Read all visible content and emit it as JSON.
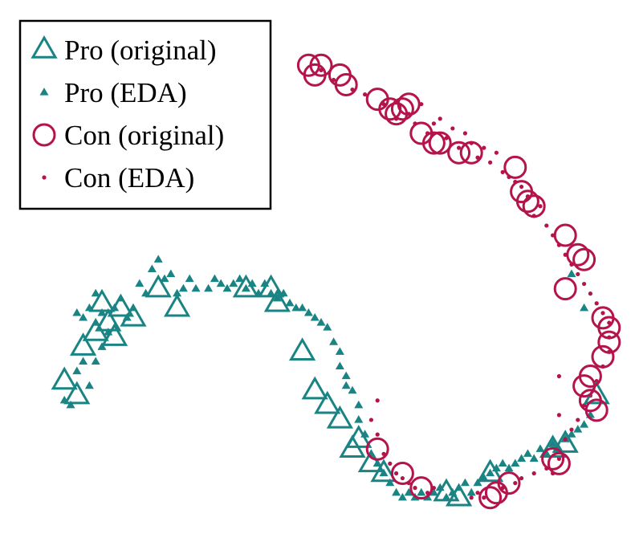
{
  "colors": {
    "pro": "#1a8383",
    "con": "#b5134b"
  },
  "chart_data": {
    "type": "scatter",
    "title": "",
    "xlabel": "",
    "ylabel": "",
    "axes_visible": false,
    "grid": false,
    "xlim": [
      0,
      100
    ],
    "ylim": [
      0,
      100
    ],
    "legend": {
      "placement": "top-left",
      "entries": [
        {
          "label": "Pro (original)",
          "marker": "open-triangle-large",
          "color": "#1a8383"
        },
        {
          "label": "Pro (EDA)",
          "marker": "filled-triangle-small",
          "color": "#1a8383"
        },
        {
          "label": "Con (original)",
          "marker": "open-circle-large",
          "color": "#b5134b"
        },
        {
          "label": "Con (EDA)",
          "marker": "filled-dot-small",
          "color": "#b5134b"
        }
      ]
    },
    "series": [
      {
        "name": "Pro (original)",
        "points": [
          [
            9,
            29
          ],
          [
            11,
            26
          ],
          [
            12,
            36
          ],
          [
            14,
            39
          ],
          [
            15,
            45
          ],
          [
            16,
            41
          ],
          [
            17,
            38
          ],
          [
            18,
            44
          ],
          [
            20,
            42
          ],
          [
            24,
            48
          ],
          [
            27,
            44
          ],
          [
            38,
            48
          ],
          [
            42,
            48
          ],
          [
            43,
            45
          ],
          [
            47,
            35
          ],
          [
            49,
            27
          ],
          [
            51,
            24
          ],
          [
            53,
            21
          ],
          [
            55,
            15
          ],
          [
            56,
            17
          ],
          [
            58,
            12
          ],
          [
            60,
            10
          ],
          [
            70,
            6
          ],
          [
            72,
            5
          ],
          [
            77,
            10
          ],
          [
            87,
            15
          ],
          [
            89,
            16
          ],
          [
            94,
            26
          ]
        ]
      },
      {
        "name": "Pro (EDA)",
        "points": [
          [
            9,
            25
          ],
          [
            10,
            24
          ],
          [
            11,
            31
          ],
          [
            11,
            43
          ],
          [
            12,
            33
          ],
          [
            12,
            42
          ],
          [
            13,
            28
          ],
          [
            13,
            44
          ],
          [
            14,
            33
          ],
          [
            14,
            41
          ],
          [
            14,
            47
          ],
          [
            15,
            36
          ],
          [
            15,
            43
          ],
          [
            16,
            39
          ],
          [
            17,
            44
          ],
          [
            18,
            46
          ],
          [
            19,
            42
          ],
          [
            20,
            44
          ],
          [
            21,
            49
          ],
          [
            22,
            47
          ],
          [
            23,
            52
          ],
          [
            24,
            54
          ],
          [
            25,
            50
          ],
          [
            26,
            51
          ],
          [
            27,
            47
          ],
          [
            28,
            48
          ],
          [
            29,
            50
          ],
          [
            30,
            48
          ],
          [
            32,
            48
          ],
          [
            33,
            50
          ],
          [
            34,
            49
          ],
          [
            35,
            48
          ],
          [
            36,
            49
          ],
          [
            37,
            50
          ],
          [
            38,
            48
          ],
          [
            39,
            49
          ],
          [
            40,
            47
          ],
          [
            41,
            49
          ],
          [
            42,
            47
          ],
          [
            43,
            46
          ],
          [
            44,
            47
          ],
          [
            45,
            45
          ],
          [
            46,
            44
          ],
          [
            47,
            44
          ],
          [
            48,
            43
          ],
          [
            49,
            42
          ],
          [
            50,
            41
          ],
          [
            51,
            40
          ],
          [
            52,
            37
          ],
          [
            53,
            35
          ],
          [
            53,
            32
          ],
          [
            54,
            30
          ],
          [
            54,
            28
          ],
          [
            55,
            27
          ],
          [
            56,
            24
          ],
          [
            56,
            21
          ],
          [
            57,
            18
          ],
          [
            58,
            14
          ],
          [
            59,
            12
          ],
          [
            60,
            10
          ],
          [
            61,
            8
          ],
          [
            62,
            6
          ],
          [
            63,
            5
          ],
          [
            64,
            6
          ],
          [
            65,
            5
          ],
          [
            66,
            6
          ],
          [
            67,
            5
          ],
          [
            68,
            6
          ],
          [
            69,
            7
          ],
          [
            70,
            5
          ],
          [
            71,
            6
          ],
          [
            72,
            7
          ],
          [
            73,
            8
          ],
          [
            74,
            6
          ],
          [
            75,
            8
          ],
          [
            76,
            9
          ],
          [
            77,
            10
          ],
          [
            78,
            11
          ],
          [
            79,
            12
          ],
          [
            80,
            11
          ],
          [
            81,
            12
          ],
          [
            82,
            13
          ],
          [
            83,
            14
          ],
          [
            84,
            13
          ],
          [
            85,
            15
          ],
          [
            86,
            14
          ],
          [
            87,
            16
          ],
          [
            88,
            15
          ],
          [
            89,
            17
          ],
          [
            90,
            18
          ],
          [
            91,
            19
          ],
          [
            92,
            20
          ],
          [
            93,
            22
          ],
          [
            90,
            51
          ],
          [
            92,
            44
          ]
        ]
      },
      {
        "name": "Con (original)",
        "points": [
          [
            48,
            94
          ],
          [
            49,
            92
          ],
          [
            50,
            94
          ],
          [
            53,
            92
          ],
          [
            54,
            90
          ],
          [
            59,
            87
          ],
          [
            61,
            85
          ],
          [
            62,
            84
          ],
          [
            63,
            85
          ],
          [
            64,
            86
          ],
          [
            66,
            80
          ],
          [
            68,
            78
          ],
          [
            69,
            78
          ],
          [
            72,
            76
          ],
          [
            74,
            76
          ],
          [
            81,
            73
          ],
          [
            82,
            68
          ],
          [
            83,
            66
          ],
          [
            84,
            65
          ],
          [
            89,
            59
          ],
          [
            91,
            55
          ],
          [
            92,
            54
          ],
          [
            89,
            48
          ],
          [
            95,
            42
          ],
          [
            96,
            40
          ],
          [
            96,
            37
          ],
          [
            95,
            34
          ],
          [
            93,
            30
          ],
          [
            92,
            28
          ],
          [
            93,
            25
          ],
          [
            94,
            23
          ],
          [
            88,
            12
          ],
          [
            87,
            13
          ],
          [
            80,
            8
          ],
          [
            78,
            6
          ],
          [
            77,
            5
          ],
          [
            66,
            7
          ],
          [
            63,
            10
          ],
          [
            59,
            15
          ]
        ]
      },
      {
        "name": "Con (EDA)",
        "points": [
          [
            50,
            93
          ],
          [
            52,
            91
          ],
          [
            55,
            89
          ],
          [
            57,
            88
          ],
          [
            60,
            86
          ],
          [
            62,
            83
          ],
          [
            64,
            84
          ],
          [
            65,
            82
          ],
          [
            66,
            86
          ],
          [
            67,
            80
          ],
          [
            68,
            82
          ],
          [
            69,
            83
          ],
          [
            70,
            79
          ],
          [
            71,
            81
          ],
          [
            72,
            77
          ],
          [
            73,
            80
          ],
          [
            74,
            78
          ],
          [
            75,
            75
          ],
          [
            76,
            77
          ],
          [
            77,
            74
          ],
          [
            78,
            76
          ],
          [
            79,
            72
          ],
          [
            80,
            71
          ],
          [
            81,
            70
          ],
          [
            82,
            69
          ],
          [
            83,
            67
          ],
          [
            84,
            63
          ],
          [
            85,
            65
          ],
          [
            86,
            61
          ],
          [
            87,
            59
          ],
          [
            88,
            57
          ],
          [
            89,
            55
          ],
          [
            90,
            53
          ],
          [
            91,
            51
          ],
          [
            92,
            49
          ],
          [
            93,
            47
          ],
          [
            94,
            45
          ],
          [
            95,
            43
          ],
          [
            96,
            41
          ],
          [
            96,
            38
          ],
          [
            96,
            35
          ],
          [
            95,
            32
          ],
          [
            94,
            29
          ],
          [
            93,
            26
          ],
          [
            92,
            24
          ],
          [
            91,
            21
          ],
          [
            90,
            19
          ],
          [
            89,
            17
          ],
          [
            88,
            22
          ],
          [
            88,
            30
          ],
          [
            59,
            25
          ],
          [
            58,
            21
          ],
          [
            59,
            18
          ],
          [
            60,
            14
          ],
          [
            61,
            12
          ],
          [
            62,
            10
          ],
          [
            63,
            9
          ],
          [
            64,
            8
          ],
          [
            65,
            7
          ],
          [
            67,
            6
          ],
          [
            68,
            7
          ],
          [
            74,
            5
          ],
          [
            75,
            6
          ],
          [
            76,
            5
          ],
          [
            79,
            7
          ],
          [
            81,
            8
          ],
          [
            82,
            9
          ],
          [
            84,
            10
          ],
          [
            86,
            11
          ],
          [
            87,
            10
          ],
          [
            88,
            13
          ]
        ]
      }
    ]
  }
}
